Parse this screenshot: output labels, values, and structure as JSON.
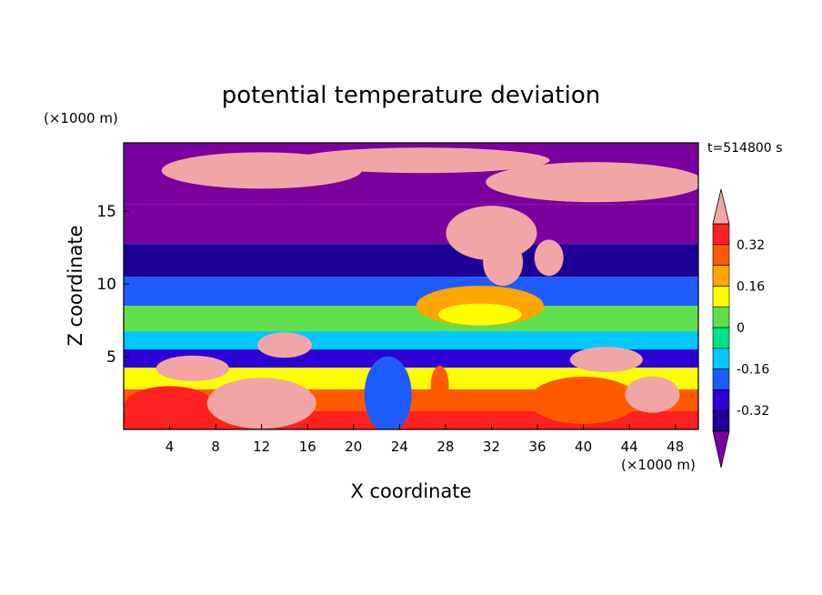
{
  "chart_data": {
    "type": "heatmap",
    "title": "potential temperature deviation",
    "xlabel": "X coordinate",
    "ylabel": "Z coordinate",
    "x_unit": "(×1000 m)",
    "y_unit": "(×1000 m)",
    "time_label": "t=514800 s",
    "xlim": [
      0,
      50
    ],
    "ylim": [
      0,
      19.7
    ],
    "x_ticks": [
      4,
      8,
      12,
      16,
      20,
      24,
      28,
      32,
      36,
      40,
      44,
      48
    ],
    "y_ticks": [
      5,
      10,
      15
    ],
    "colorbar": {
      "levels": [
        -0.4,
        -0.32,
        -0.24,
        -0.16,
        -0.08,
        0,
        0.08,
        0.16,
        0.24,
        0.32,
        0.4
      ],
      "colors": [
        "#7a00a0",
        "#1c0096",
        "#2d00d6",
        "#1f5cff",
        "#00c8ff",
        "#00e28a",
        "#5fe04a",
        "#ffff00",
        "#ffa500",
        "#ff5a00",
        "#ff2020"
      ],
      "under_color": "#7a00a0",
      "over_color": "#f2a5a5",
      "tick_labels": [
        "0.32",
        "0.16",
        "0",
        "-0.16",
        "-0.32"
      ],
      "tick_values": [
        0.32,
        0.16,
        0,
        -0.16,
        -0.32
      ]
    },
    "z_profile": [
      {
        "z": 0.5,
        "value": 0.32
      },
      {
        "z": 2.0,
        "value": 0.24
      },
      {
        "z": 3.5,
        "value": 0.12
      },
      {
        "z": 5.0,
        "value": -0.28
      },
      {
        "z": 6.0,
        "value": -0.1
      },
      {
        "z": 7.5,
        "value": 0.06
      },
      {
        "z": 9.5,
        "value": -0.18
      },
      {
        "z": 11.5,
        "value": -0.34
      },
      {
        "z": 14.0,
        "value": -0.44
      },
      {
        "z": 17.0,
        "value": -0.5
      }
    ]
  }
}
